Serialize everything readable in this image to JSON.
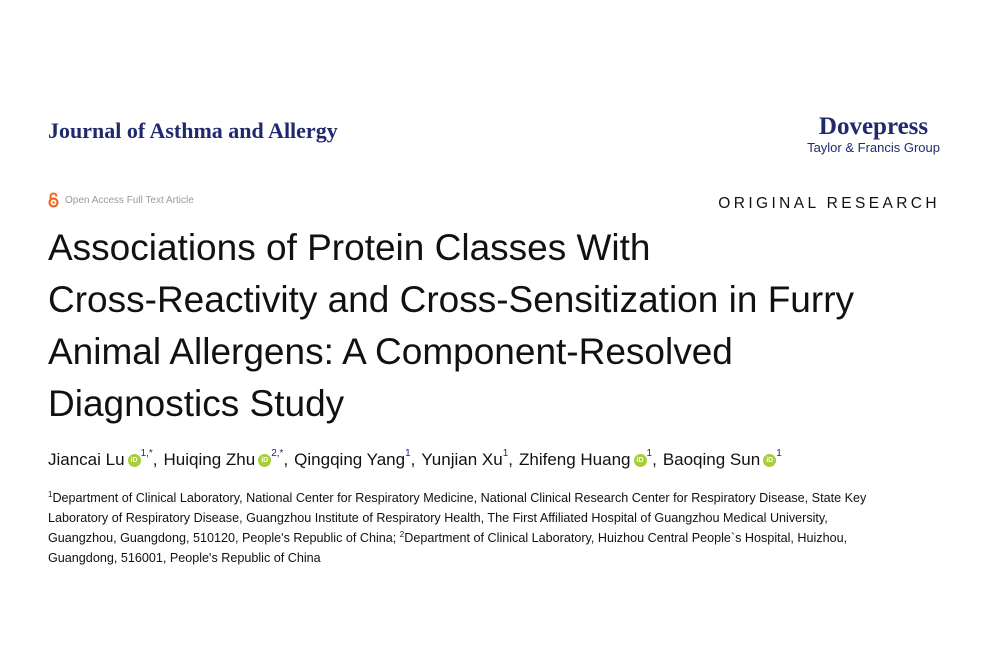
{
  "journal": "Journal of Asthma and Allergy",
  "publisher": {
    "name": "Dovepress",
    "group": "Taylor & Francis Group"
  },
  "open_access": {
    "icon": "open-access-lock-icon",
    "label": "Open Access Full Text Article",
    "color": "#f26522"
  },
  "article_type": "ORIGINAL RESEARCH",
  "title_lines": [
    "Associations of Protein Classes With",
    "Cross-Reactivity and Cross-Sensitization in Furry",
    "Animal Allergens: A Component-Resolved",
    "Diagnostics Study"
  ],
  "authors": [
    {
      "name": "Jiancai Lu",
      "orcid": true,
      "sup": "1,*"
    },
    {
      "name": "Huiqing Zhu",
      "orcid": true,
      "sup": "2,*"
    },
    {
      "name": "Qingqing Yang",
      "orcid": false,
      "sup": "1"
    },
    {
      "name": "Yunjian Xu",
      "orcid": false,
      "sup": "1"
    },
    {
      "name": "Zhifeng Huang",
      "orcid": true,
      "sup": "1"
    },
    {
      "name": "Baoqing Sun",
      "orcid": true,
      "sup": "1"
    }
  ],
  "orcid_label": "iD",
  "affiliations": {
    "sup1": "1",
    "sup2": "2",
    "line1": "Department of Clinical Laboratory, National Center for Respiratory Medicine, National Clinical Research Center for Respiratory Disease, State Key",
    "line2": "Laboratory of Respiratory Disease, Guangzhou Institute of Respiratory Health, The First Affiliated Hospital of Guangzhou Medical University,",
    "line3a": "Guangzhou, Guangdong, 510120, People's Republic of China; ",
    "line3b": "Department of Clinical Laboratory, Huizhou Central People`s Hospital, Huizhou,",
    "line4": "Guangdong, 516001, People's Republic of China"
  },
  "colors": {
    "journal": "#1f2a6e",
    "orcid": "#a6ce39"
  }
}
